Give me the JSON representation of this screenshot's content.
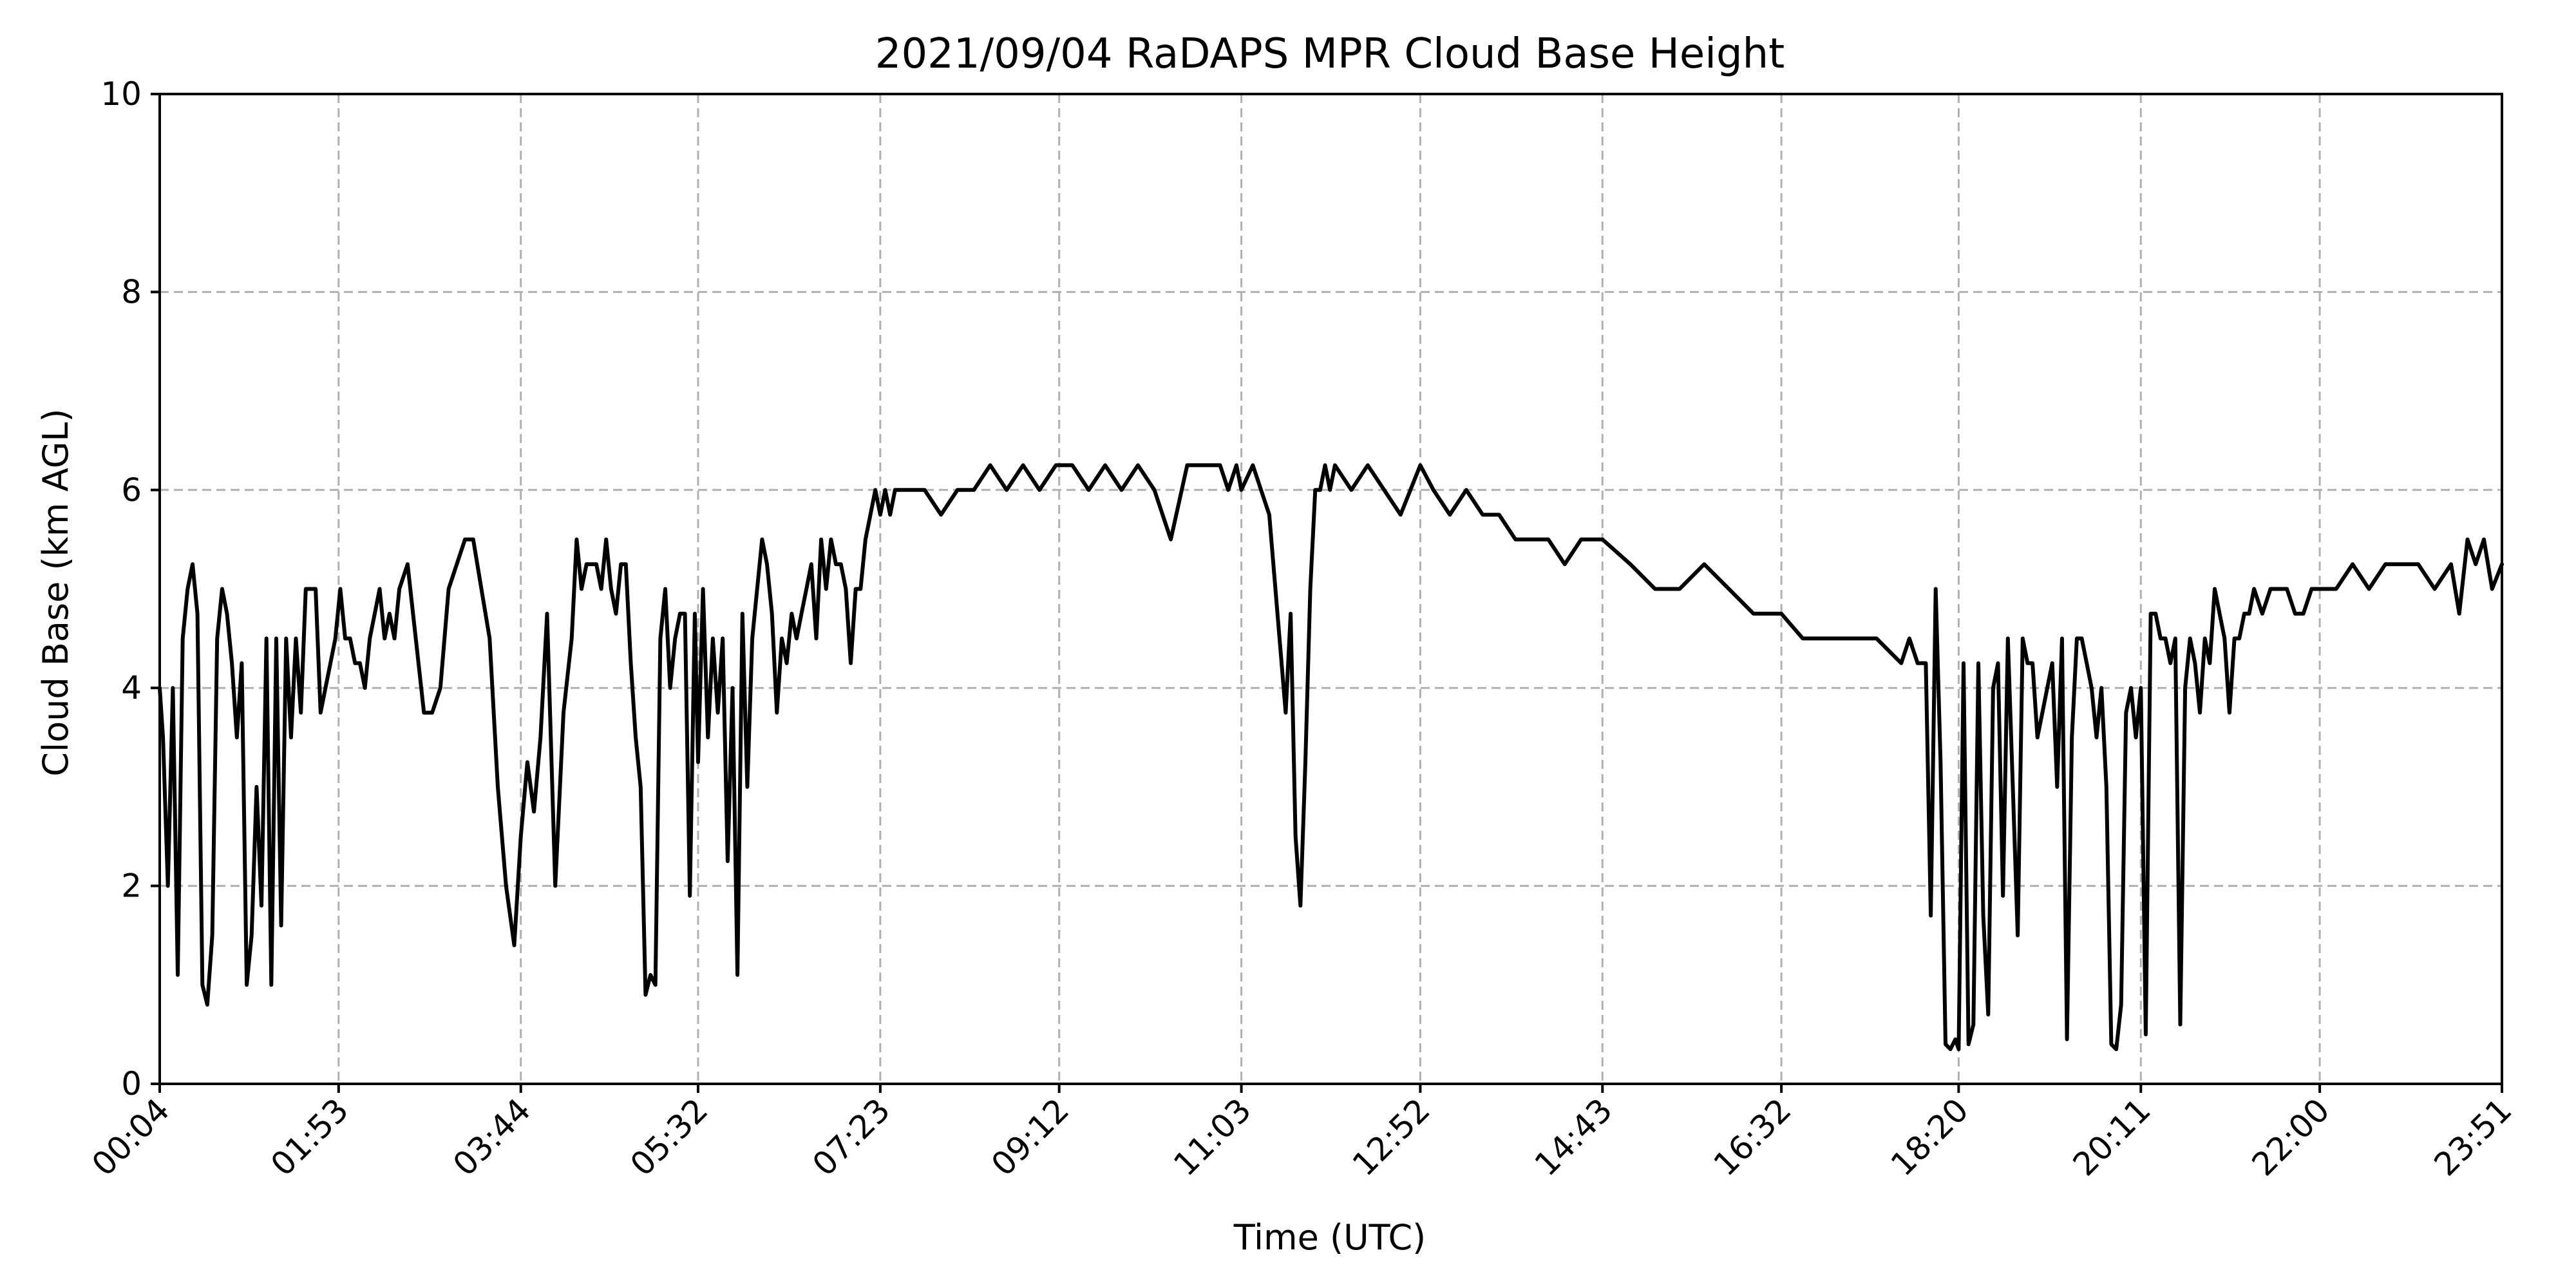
{
  "chart_data": {
    "type": "line",
    "title": "2021/09/04 RaDAPS MPR Cloud Base Height",
    "xlabel": "Time (UTC)",
    "ylabel": "Cloud Base (km AGL)",
    "ylim": [
      0,
      10
    ],
    "yticks": [
      0,
      2,
      4,
      6,
      8,
      10
    ],
    "xticks": [
      "00:04",
      "01:53",
      "03:44",
      "05:32",
      "07:23",
      "09:12",
      "11:03",
      "12:52",
      "14:43",
      "16:32",
      "18:20",
      "20:11",
      "22:00",
      "23:51"
    ],
    "grid": true,
    "series": [
      {
        "color": "#000000",
        "x": [
          "00:04",
          "00:06",
          "00:09",
          "00:12",
          "00:15",
          "00:18",
          "00:21",
          "00:24",
          "00:27",
          "00:30",
          "00:33",
          "00:36",
          "00:39",
          "00:42",
          "00:45",
          "00:48",
          "00:51",
          "00:54",
          "00:57",
          "01:00",
          "01:03",
          "01:06",
          "01:09",
          "01:12",
          "01:15",
          "01:18",
          "01:21",
          "01:24",
          "01:27",
          "01:30",
          "01:33",
          "01:36",
          "01:39",
          "01:42",
          "01:45",
          "01:48",
          "01:51",
          "01:54",
          "01:57",
          "02:00",
          "02:03",
          "02:06",
          "02:09",
          "02:12",
          "02:15",
          "02:18",
          "02:21",
          "02:24",
          "02:27",
          "02:30",
          "02:35",
          "02:40",
          "02:45",
          "02:50",
          "02:55",
          "03:00",
          "03:05",
          "03:10",
          "03:15",
          "03:20",
          "03:25",
          "03:30",
          "03:35",
          "03:40",
          "03:44",
          "03:48",
          "03:52",
          "03:56",
          "04:00",
          "04:05",
          "04:10",
          "04:15",
          "04:18",
          "04:21",
          "04:24",
          "04:27",
          "04:30",
          "04:33",
          "04:36",
          "04:39",
          "04:42",
          "04:45",
          "04:48",
          "04:51",
          "04:54",
          "04:57",
          "05:00",
          "05:03",
          "05:06",
          "05:09",
          "05:12",
          "05:15",
          "05:18",
          "05:21",
          "05:24",
          "05:27",
          "05:30",
          "05:32",
          "05:35",
          "05:38",
          "05:41",
          "05:44",
          "05:47",
          "05:50",
          "05:53",
          "05:56",
          "05:59",
          "06:02",
          "06:05",
          "06:08",
          "06:11",
          "06:14",
          "06:17",
          "06:20",
          "06:23",
          "06:26",
          "06:29",
          "06:32",
          "06:35",
          "06:38",
          "06:41",
          "06:44",
          "06:47",
          "06:50",
          "06:53",
          "06:56",
          "06:59",
          "07:02",
          "07:05",
          "07:08",
          "07:11",
          "07:14",
          "07:17",
          "07:20",
          "07:23",
          "07:26",
          "07:29",
          "07:32",
          "07:35",
          "07:40",
          "07:45",
          "07:50",
          "08:00",
          "08:10",
          "08:20",
          "08:30",
          "08:40",
          "08:50",
          "09:00",
          "09:10",
          "09:12",
          "09:20",
          "09:30",
          "09:40",
          "09:50",
          "10:00",
          "10:10",
          "10:20",
          "10:30",
          "10:40",
          "10:50",
          "10:55",
          "11:00",
          "11:03",
          "11:10",
          "11:20",
          "11:30",
          "11:33",
          "11:36",
          "11:39",
          "11:42",
          "11:45",
          "11:48",
          "11:51",
          "11:54",
          "11:57",
          "12:00",
          "12:10",
          "12:20",
          "12:30",
          "12:40",
          "12:52",
          "13:00",
          "13:10",
          "13:20",
          "13:30",
          "13:40",
          "13:50",
          "14:00",
          "14:10",
          "14:20",
          "14:30",
          "14:43",
          "15:00",
          "15:15",
          "15:30",
          "15:45",
          "16:00",
          "16:15",
          "16:32",
          "16:45",
          "17:00",
          "17:15",
          "17:30",
          "17:45",
          "17:50",
          "17:55",
          "18:00",
          "18:03",
          "18:06",
          "18:09",
          "18:12",
          "18:15",
          "18:18",
          "18:20",
          "18:23",
          "18:26",
          "18:29",
          "18:32",
          "18:35",
          "18:38",
          "18:41",
          "18:44",
          "18:47",
          "18:50",
          "18:53",
          "18:56",
          "18:59",
          "19:02",
          "19:05",
          "19:08",
          "19:11",
          "19:14",
          "19:17",
          "19:20",
          "19:23",
          "19:26",
          "19:29",
          "19:32",
          "19:35",
          "19:38",
          "19:41",
          "19:44",
          "19:47",
          "19:50",
          "19:53",
          "19:56",
          "19:59",
          "20:02",
          "20:05",
          "20:08",
          "20:11",
          "20:14",
          "20:17",
          "20:20",
          "20:23",
          "20:26",
          "20:29",
          "20:32",
          "20:35",
          "20:38",
          "20:41",
          "20:44",
          "20:47",
          "20:50",
          "20:53",
          "20:56",
          "20:59",
          "21:02",
          "21:05",
          "21:08",
          "21:11",
          "21:14",
          "21:17",
          "21:20",
          "21:25",
          "21:30",
          "21:35",
          "21:40",
          "21:45",
          "21:50",
          "21:55",
          "22:00",
          "22:10",
          "22:20",
          "22:30",
          "22:40",
          "22:50",
          "23:00",
          "23:10",
          "23:20",
          "23:25",
          "23:30",
          "23:35",
          "23:40",
          "23:45",
          "23:51"
        ],
        "y": [
          4.0,
          3.5,
          2.0,
          4.0,
          1.1,
          4.5,
          5.0,
          5.25,
          4.75,
          1.0,
          0.8,
          1.5,
          4.5,
          5.0,
          4.75,
          4.25,
          3.5,
          4.25,
          1.0,
          1.5,
          3.0,
          1.8,
          4.5,
          1.0,
          4.5,
          1.6,
          4.5,
          3.5,
          4.5,
          3.75,
          5.0,
          5.0,
          5.0,
          3.75,
          4.0,
          4.25,
          4.5,
          5.0,
          4.5,
          4.5,
          4.25,
          4.25,
          4.0,
          4.5,
          4.75,
          5.0,
          4.5,
          4.75,
          4.5,
          5.0,
          5.25,
          4.5,
          3.75,
          3.75,
          4.0,
          5.0,
          5.25,
          5.5,
          5.5,
          5.0,
          4.5,
          3.0,
          2.0,
          1.4,
          2.5,
          3.25,
          2.75,
          3.5,
          4.75,
          2.0,
          3.75,
          4.5,
          5.5,
          5.0,
          5.25,
          5.25,
          5.25,
          5.0,
          5.5,
          5.0,
          4.75,
          5.25,
          5.25,
          4.25,
          3.5,
          3.0,
          0.9,
          1.1,
          1.0,
          4.5,
          5.0,
          4.0,
          4.5,
          4.75,
          4.75,
          1.9,
          4.75,
          3.25,
          5.0,
          3.5,
          4.5,
          3.75,
          4.5,
          2.25,
          4.0,
          1.1,
          4.75,
          3.0,
          4.5,
          5.0,
          5.5,
          5.25,
          4.75,
          3.75,
          4.5,
          4.25,
          4.75,
          4.5,
          4.75,
          5.0,
          5.25,
          4.5,
          5.5,
          5.0,
          5.5,
          5.25,
          5.25,
          5.0,
          4.25,
          5.0,
          5.0,
          5.5,
          5.75,
          6.0,
          5.75,
          6.0,
          5.75,
          6.0,
          6.0,
          6.0,
          6.0,
          6.0,
          5.75,
          6.0,
          6.0,
          6.25,
          6.0,
          6.25,
          6.0,
          6.25,
          6.25,
          6.25,
          6.0,
          6.25,
          6.0,
          6.25,
          6.0,
          5.5,
          6.25,
          6.25,
          6.25,
          6.0,
          6.25,
          6.0,
          6.25,
          5.75,
          3.75,
          4.75,
          2.5,
          1.8,
          3.25,
          5.0,
          6.0,
          6.0,
          6.25,
          6.0,
          6.25,
          6.0,
          6.25,
          6.0,
          5.75,
          6.25,
          6.0,
          5.75,
          6.0,
          5.75,
          5.75,
          5.5,
          5.5,
          5.5,
          5.25,
          5.5,
          5.5,
          5.25,
          5.0,
          5.0,
          5.25,
          5.0,
          4.75,
          4.75,
          4.5,
          4.5,
          4.5,
          4.5,
          4.25,
          4.5,
          4.25,
          4.25,
          1.7,
          5.0,
          3.25,
          0.4,
          0.35,
          0.45,
          0.35,
          4.25,
          0.4,
          0.6,
          4.25,
          1.7,
          0.7,
          4.0,
          4.25,
          1.9,
          4.5,
          3.0,
          1.5,
          4.5,
          4.25,
          4.25,
          3.5,
          3.75,
          4.0,
          4.25,
          3.0,
          4.5,
          0.45,
          3.5,
          4.5,
          4.5,
          4.25,
          4.0,
          3.5,
          4.0,
          3.0,
          0.4,
          0.35,
          0.8,
          3.75,
          4.0,
          3.5,
          4.0,
          0.5,
          4.75,
          4.75,
          4.5,
          4.5,
          4.25,
          4.5,
          0.6,
          4.0,
          4.5,
          4.25,
          3.75,
          4.5,
          4.25,
          5.0,
          4.75,
          4.5,
          3.75,
          4.5,
          4.5,
          4.75,
          4.75,
          5.0,
          4.75,
          5.0,
          5.0,
          5.0,
          4.75,
          4.75,
          5.0,
          5.0,
          5.0,
          5.25,
          5.0,
          5.25,
          5.25,
          5.25,
          5.0,
          5.25,
          4.75,
          5.5,
          5.25,
          5.5,
          5.0,
          5.25
        ]
      }
    ]
  }
}
